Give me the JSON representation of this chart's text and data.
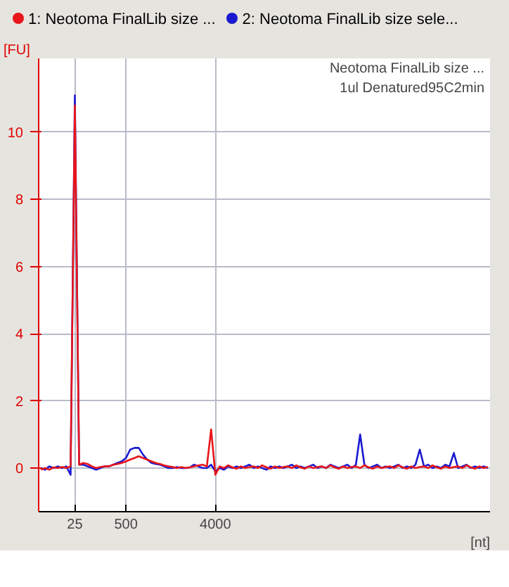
{
  "chart_data": {
    "type": "line",
    "xlabel": "[nt]",
    "ylabel": "[FU]",
    "annotations": [
      "Neotoma FinalLib size ...",
      "1ul Denatured95C2min"
    ],
    "categories": [
      null,
      null,
      null,
      null,
      null,
      null,
      null,
      null,
      "25",
      null,
      null,
      null,
      null,
      null,
      null,
      null,
      null,
      null,
      null,
      null,
      "500",
      null,
      null,
      null,
      null,
      null,
      null,
      null,
      null,
      null,
      null,
      null,
      null,
      null,
      null,
      null,
      null,
      null,
      null,
      null,
      null,
      "4000",
      null,
      null,
      null,
      null,
      null,
      null,
      null,
      null,
      null,
      null,
      null,
      null,
      null,
      null,
      null,
      null,
      null,
      null,
      null,
      null,
      null,
      null,
      null,
      null,
      null,
      null,
      null,
      null,
      null,
      null,
      null,
      null,
      null,
      null,
      null,
      null,
      null,
      null,
      null,
      null,
      null,
      null,
      null,
      null,
      null,
      null,
      null,
      null,
      null,
      null,
      null,
      null,
      null,
      null,
      null,
      null,
      null,
      null,
      null,
      null,
      null,
      null,
      null,
      null
    ],
    "ylim": [
      -1.3,
      12.2
    ],
    "yticks": [
      0,
      2,
      4,
      6,
      8,
      10
    ],
    "grid": true,
    "legend": "top",
    "line_style": "solid",
    "series": [
      {
        "name": "1: Neotoma FinalLib size ...",
        "color": "#e8161b",
        "values": [
          -0.05,
          0.0,
          -0.05,
          0.02,
          0.0,
          0.03,
          0.0,
          0.05,
          10.8,
          0.1,
          0.15,
          0.12,
          0.05,
          0.0,
          0.03,
          0.05,
          0.05,
          0.1,
          0.12,
          0.15,
          0.2,
          0.25,
          0.3,
          0.35,
          0.3,
          0.25,
          0.2,
          0.15,
          0.12,
          0.08,
          0.05,
          0.03,
          0.0,
          0.03,
          0.0,
          0.02,
          0.05,
          0.08,
          0.1,
          0.05,
          1.15,
          -0.2,
          0.05,
          0.0,
          0.08,
          0.02,
          -0.02,
          0.05,
          0.0,
          0.03,
          0.05,
          0.0,
          0.08,
          0.02,
          -0.02,
          0.05,
          0.0,
          0.03,
          0.05,
          0.0,
          0.08,
          0.02,
          -0.02,
          0.05,
          0.0,
          0.03,
          0.05,
          0.0,
          0.08,
          0.02,
          -0.02,
          0.05,
          0.0,
          0.03,
          0.05,
          0.0,
          0.08,
          0.02,
          -0.02,
          0.05,
          0.0,
          0.03,
          0.05,
          0.0,
          0.08,
          0.02,
          -0.02,
          0.05,
          0.0,
          0.03,
          0.05,
          0.0,
          0.08,
          0.02,
          -0.02,
          0.05,
          0.0,
          0.03,
          0.05,
          0.0,
          0.08,
          0.02,
          -0.02,
          0.05,
          0.0,
          0.03
        ]
      },
      {
        "name": "2: Neotoma FinalLib size sele...",
        "color": "#1a1ad0",
        "values": [
          0.0,
          -0.05,
          0.05,
          0.0,
          0.05,
          0.0,
          0.05,
          -0.2,
          11.1,
          0.1,
          0.1,
          0.05,
          0.0,
          -0.05,
          0.0,
          0.05,
          0.05,
          0.1,
          0.15,
          0.2,
          0.3,
          0.55,
          0.6,
          0.6,
          0.4,
          0.25,
          0.15,
          0.12,
          0.1,
          0.05,
          0.0,
          0.0,
          0.03,
          0.0,
          0.0,
          0.02,
          0.1,
          0.05,
          0.0,
          0.0,
          0.1,
          -0.1,
          0.0,
          -0.05,
          0.05,
          0.0,
          0.05,
          0.0,
          0.05,
          0.1,
          0.0,
          0.05,
          0.0,
          -0.05,
          0.05,
          0.0,
          0.05,
          0.0,
          0.05,
          0.1,
          0.0,
          0.05,
          0.0,
          0.05,
          0.1,
          0.0,
          0.05,
          0.0,
          0.1,
          0.05,
          0.0,
          0.05,
          0.1,
          0.0,
          0.1,
          1.0,
          0.1,
          0.0,
          0.05,
          0.1,
          0.0,
          0.05,
          0.0,
          0.05,
          0.1,
          0.0,
          0.05,
          0.0,
          0.1,
          0.55,
          0.05,
          0.1,
          0.0,
          0.05,
          0.0,
          0.1,
          0.05,
          0.45,
          0.0,
          0.05,
          0.1,
          0.0,
          0.05,
          0.0,
          0.05,
          0.0
        ]
      }
    ]
  }
}
